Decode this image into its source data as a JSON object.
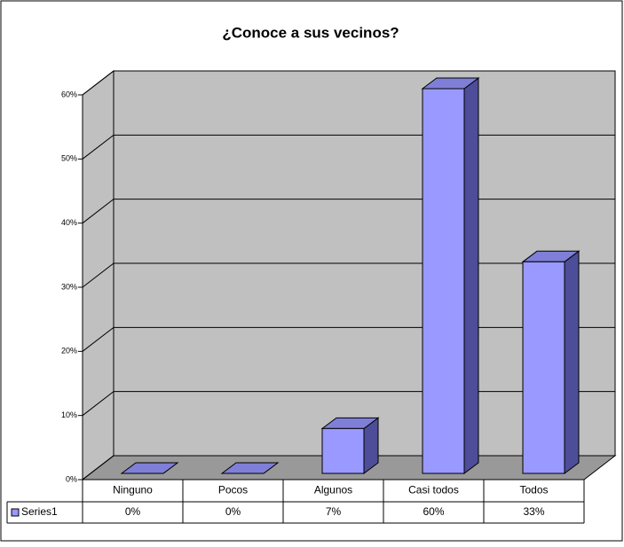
{
  "chart_data": {
    "type": "bar3d",
    "title": "¿Conoce a sus vecinos?",
    "categories": [
      "Ninguno",
      "Pocos",
      "Algunos",
      "Casi todos",
      "Todos"
    ],
    "series": [
      {
        "name": "Series1",
        "color": "#9999ff",
        "values": [
          0,
          0,
          7,
          60,
          33
        ],
        "value_labels": [
          "0%",
          "0%",
          "7%",
          "60%",
          "33%"
        ]
      }
    ],
    "ylim": [
      0,
      60
    ],
    "yticks": [
      {
        "value": 0,
        "label": "0%"
      },
      {
        "value": 10,
        "label": "10%"
      },
      {
        "value": 20,
        "label": "20%"
      },
      {
        "value": 30,
        "label": "30%"
      },
      {
        "value": 40,
        "label": "40%"
      },
      {
        "value": 50,
        "label": "50%"
      },
      {
        "value": 60,
        "label": "60%"
      }
    ],
    "grid": true,
    "legend": "data-table"
  }
}
